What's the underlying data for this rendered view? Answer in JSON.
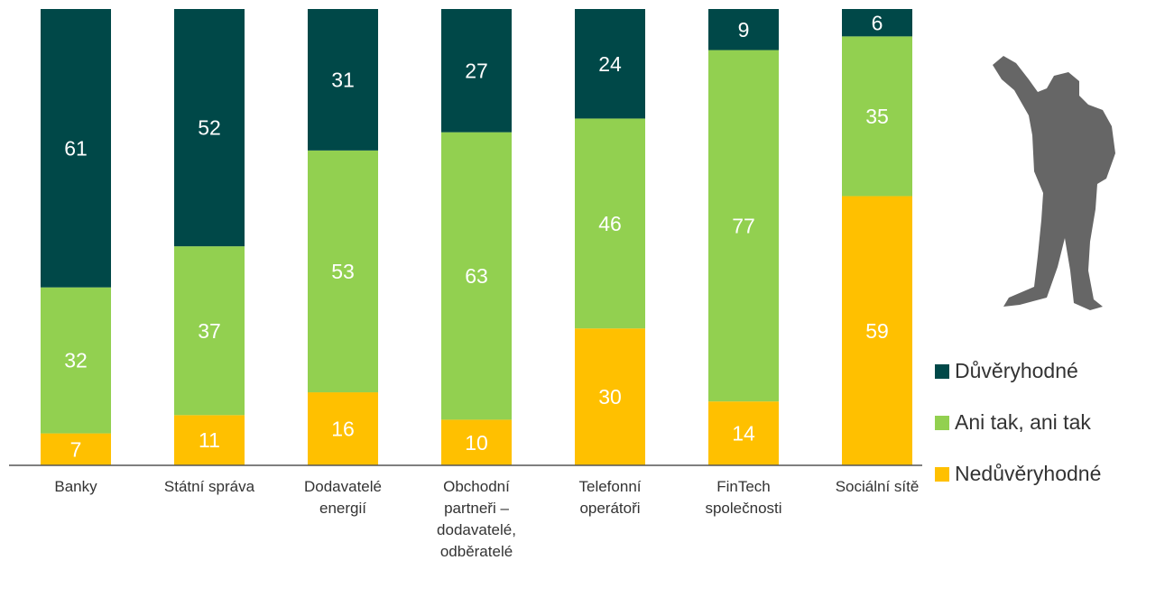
{
  "chart_data": {
    "type": "stacked_bar",
    "categories": [
      "Banky",
      "Státní správa",
      "Dodavatelé energií",
      "Obchodní partneři – dodavatelé, odběratelé",
      "Telefonní operátoři",
      "FinTech společnosti",
      "Sociální sítě"
    ],
    "series": [
      {
        "name": "Důvěryhodné",
        "color": "#004848",
        "values": [
          61,
          52,
          31,
          27,
          24,
          9,
          6
        ]
      },
      {
        "name": "Ani tak, ani tak",
        "color": "#92D050",
        "values": [
          32,
          37,
          53,
          63,
          46,
          77,
          35
        ]
      },
      {
        "name": "Nedůvěryhodné",
        "color": "#FFC000",
        "values": [
          7,
          11,
          16,
          10,
          30,
          14,
          59
        ]
      }
    ],
    "ylim": [
      0,
      100
    ]
  }
}
